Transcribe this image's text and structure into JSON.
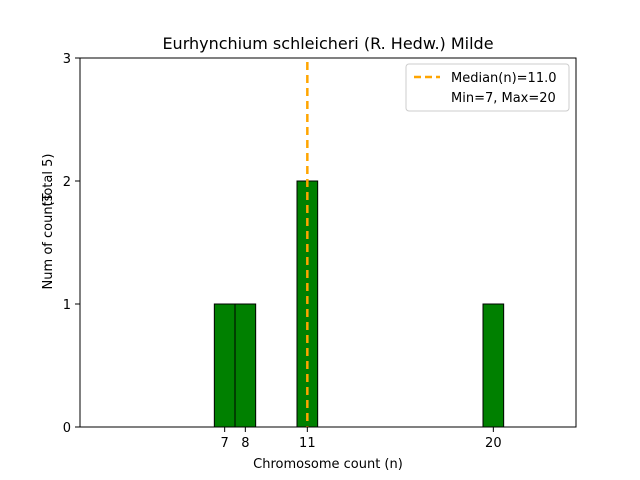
{
  "chart_data": {
    "type": "bar",
    "title": "Eurhynchium schleicheri (R. Hedw.) Milde",
    "xlabel": "Chromosome count (n)",
    "ylabel": "Num of counts",
    "ylabel_total": "(Total 5)",
    "x": [
      7,
      8,
      11,
      20
    ],
    "values": [
      1,
      1,
      2,
      1
    ],
    "bar_width": 1,
    "xlim": [
      0,
      24
    ],
    "ylim": [
      0,
      3
    ],
    "xticks": [
      7,
      8,
      11,
      20
    ],
    "yticks": [
      0,
      1,
      2,
      3
    ],
    "grid": false,
    "bar_color": "#008000",
    "bar_edge_color": "#000000",
    "median_line": {
      "x": 11.0,
      "color": "#FFA500",
      "style": "dashed"
    },
    "legend": {
      "placement": "top-right",
      "entries": [
        "Median(n)=11.0",
        "Min=7, Max=20"
      ]
    }
  }
}
